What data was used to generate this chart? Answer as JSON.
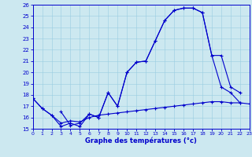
{
  "title": "Graphe des températures (°c)",
  "bg_color": "#cce8f0",
  "line_color": "#0000cc",
  "grid_color": "#99cce0",
  "xlim": [
    0,
    23
  ],
  "ylim": [
    15,
    26
  ],
  "yticks": [
    15,
    16,
    17,
    18,
    19,
    20,
    21,
    22,
    23,
    24,
    25,
    26
  ],
  "xticks": [
    0,
    1,
    2,
    3,
    4,
    5,
    6,
    7,
    8,
    9,
    10,
    11,
    12,
    13,
    14,
    15,
    16,
    17,
    18,
    19,
    20,
    21,
    22,
    23
  ],
  "curve1_x": [
    0,
    1,
    2,
    3,
    4,
    5,
    6,
    7,
    8,
    9,
    10,
    11,
    12,
    13,
    14,
    15,
    16,
    17,
    18,
    19,
    20,
    21,
    22
  ],
  "curve1_y": [
    17.7,
    16.8,
    16.2,
    15.2,
    15.5,
    15.2,
    16.3,
    16.0,
    18.2,
    17.0,
    20.0,
    20.9,
    21.0,
    22.8,
    24.6,
    25.5,
    25.7,
    25.7,
    25.3,
    21.5,
    18.7,
    18.2,
    17.3
  ],
  "curve2_x": [
    0,
    1,
    2,
    3,
    4,
    5,
    6,
    7,
    8,
    9,
    10,
    11,
    12,
    13,
    14,
    15,
    16,
    17,
    18,
    19,
    20,
    21,
    22,
    23
  ],
  "curve2_y": [
    17.7,
    16.8,
    16.2,
    15.5,
    15.7,
    15.6,
    16.0,
    16.2,
    16.3,
    16.4,
    16.5,
    16.6,
    16.7,
    16.8,
    16.9,
    17.0,
    17.1,
    17.2,
    17.3,
    17.4,
    17.4,
    17.3,
    17.3,
    17.2
  ],
  "curve3_x": [
    3,
    4,
    5,
    6,
    7,
    8,
    9,
    10,
    11,
    12,
    13,
    14,
    15,
    16,
    17,
    18,
    19,
    20,
    21,
    22
  ],
  "curve3_y": [
    16.5,
    15.3,
    15.5,
    16.3,
    16.0,
    18.2,
    17.0,
    20.0,
    20.9,
    21.0,
    22.8,
    24.6,
    25.5,
    25.7,
    25.7,
    25.3,
    21.5,
    21.5,
    18.7,
    18.2
  ]
}
